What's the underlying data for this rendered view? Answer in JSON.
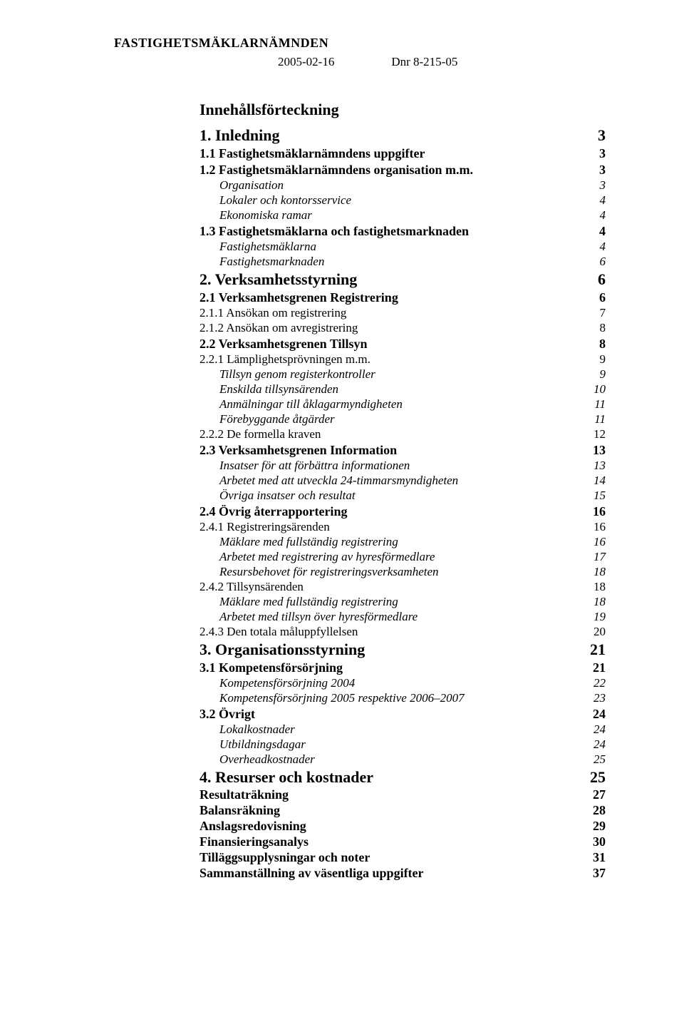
{
  "header": {
    "org": "FASTIGHETSMÄKLARNÄMNDEN",
    "date": "2005-02-16",
    "dnr": "Dnr 8-215-05"
  },
  "toc_title": "Innehållsförteckning",
  "entries": [
    {
      "level": "h1",
      "label": "1.    Inledning",
      "page": "3"
    },
    {
      "level": "h2",
      "label": "1.1  Fastighetsmäklarnämndens uppgifter",
      "page": "3"
    },
    {
      "level": "h2",
      "label": "1.2  Fastighetsmäklarnämndens organisation m.m.",
      "page": "3"
    },
    {
      "level": "h3",
      "label": "Organisation",
      "page": "3",
      "italic": true,
      "indent": 1
    },
    {
      "level": "h3",
      "label": "Lokaler och kontorsservice",
      "page": "4",
      "italic": true,
      "indent": 1
    },
    {
      "level": "h3",
      "label": "Ekonomiska ramar",
      "page": "4",
      "italic": true,
      "indent": 1
    },
    {
      "level": "h2",
      "label": "1.3  Fastighetsmäklarna och fastighetsmarknaden",
      "page": "4"
    },
    {
      "level": "h3",
      "label": "Fastighetsmäklarna",
      "page": "4",
      "italic": true,
      "indent": 1
    },
    {
      "level": "h3",
      "label": "Fastighetsmarknaden",
      "page": "6",
      "italic": true,
      "indent": 1
    },
    {
      "level": "h1",
      "label": "2.    Verksamhetsstyrning",
      "page": "6"
    },
    {
      "level": "h2",
      "label": "2.1  Verksamhetsgrenen Registrering",
      "page": "6"
    },
    {
      "level": "h3",
      "label": "2.1.1 Ansökan om registrering",
      "page": "7"
    },
    {
      "level": "h3",
      "label": "2.1.2 Ansökan om avregistrering",
      "page": "8"
    },
    {
      "level": "h2",
      "label": "2.2  Verksamhetsgrenen Tillsyn",
      "page": "8"
    },
    {
      "level": "h3",
      "label": "2.2.1 Lämplighetsprövningen m.m.",
      "page": "9"
    },
    {
      "level": "h3",
      "label": "Tillsyn genom registerkontroller",
      "page": "9",
      "italic": true,
      "indent": 1
    },
    {
      "level": "h3",
      "label": "Enskilda tillsynsärenden",
      "page": "10",
      "italic": true,
      "indent": 1
    },
    {
      "level": "h3",
      "label": "Anmälningar till åklagarmyndigheten",
      "page": "11",
      "italic": true,
      "indent": 1
    },
    {
      "level": "h3",
      "label": "Förebyggande åtgärder",
      "page": "11",
      "italic": true,
      "indent": 1
    },
    {
      "level": "h3",
      "label": "2.2.2 De formella kraven",
      "page": "12"
    },
    {
      "level": "h2",
      "label": "2.3  Verksamhetsgrenen Information",
      "page": "13"
    },
    {
      "level": "h3",
      "label": "Insatser för att förbättra informationen",
      "page": "13",
      "italic": true,
      "indent": 1
    },
    {
      "level": "h3",
      "label": "Arbetet med att utveckla 24-timmarsmyndigheten",
      "page": "14",
      "italic": true,
      "indent": 1
    },
    {
      "level": "h3",
      "label": "Övriga insatser och resultat",
      "page": "15",
      "italic": true,
      "indent": 1
    },
    {
      "level": "h2",
      "label": "2.4  Övrig återrapportering",
      "page": "16"
    },
    {
      "level": "h3",
      "label": "2.4.1 Registreringsärenden",
      "page": "16"
    },
    {
      "level": "h3",
      "label": "Mäklare med fullständig registrering",
      "page": "16",
      "italic": true,
      "indent": 1
    },
    {
      "level": "h3",
      "label": "Arbetet med registrering av hyresförmedlare",
      "page": "17",
      "italic": true,
      "indent": 1
    },
    {
      "level": "h3",
      "label": "Resursbehovet för registreringsverksamheten",
      "page": "18",
      "italic": true,
      "indent": 1
    },
    {
      "level": "h3",
      "label": "2.4.2 Tillsynsärenden",
      "page": "18"
    },
    {
      "level": "h3",
      "label": "Mäklare med fullständig registrering",
      "page": "18",
      "italic": true,
      "indent": 1
    },
    {
      "level": "h3",
      "label": "Arbetet med tillsyn över hyresförmedlare",
      "page": "19",
      "italic": true,
      "indent": 1
    },
    {
      "level": "h3",
      "label": "2.4.3 Den totala måluppfyllelsen",
      "page": "20"
    },
    {
      "level": "h1",
      "label": "3.    Organisationsstyrning",
      "page": "21"
    },
    {
      "level": "h2",
      "label": "3.1  Kompetensförsörjning",
      "page": "21"
    },
    {
      "level": "h3",
      "label": "Kompetensförsörjning 2004",
      "page": "22",
      "italic": true,
      "indent": 1
    },
    {
      "level": "h3",
      "label": "Kompetensförsörjning 2005 respektive 2006–2007",
      "page": "23",
      "italic": true,
      "indent": 1
    },
    {
      "level": "h2",
      "label": "3.2  Övrigt",
      "page": "24"
    },
    {
      "level": "h3",
      "label": "Lokalkostnader",
      "page": "24",
      "italic": true,
      "indent": 1
    },
    {
      "level": "h3",
      "label": "Utbildningsdagar",
      "page": "24",
      "italic": true,
      "indent": 1
    },
    {
      "level": "h3",
      "label": "Overheadkostnader",
      "page": "25",
      "italic": true,
      "indent": 1
    },
    {
      "level": "h1",
      "label": "4.    Resurser och kostnader",
      "page": "25"
    },
    {
      "level": "h2nobold",
      "label": "Resultaträkning",
      "page": "27"
    },
    {
      "level": "h2nobold",
      "label": "Balansräkning",
      "page": "28"
    },
    {
      "level": "h2nobold",
      "label": "Anslagsredovisning",
      "page": "29"
    },
    {
      "level": "h2nobold",
      "label": "Finansieringsanalys",
      "page": "30"
    },
    {
      "level": "h2nobold",
      "label": "Tilläggsupplysningar och noter",
      "page": "31"
    },
    {
      "level": "h2nobold",
      "label": "Sammanställning av väsentliga uppgifter",
      "page": "37"
    }
  ]
}
